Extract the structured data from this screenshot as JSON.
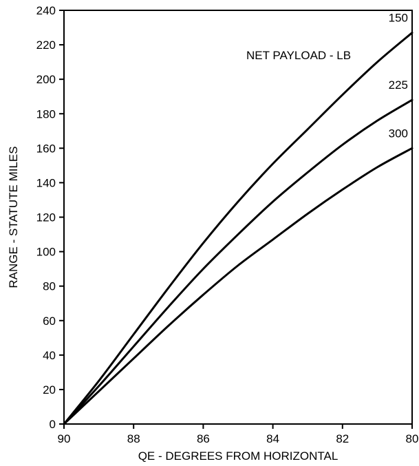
{
  "chart_data": {
    "type": "line",
    "title": "",
    "xlabel": "QE - DEGREES FROM HORIZONTAL",
    "ylabel": "RANGE - STATUTE MILES",
    "xlim": [
      90,
      80
    ],
    "ylim": [
      0,
      240
    ],
    "x_ticks": [
      90,
      88,
      86,
      84,
      82,
      80
    ],
    "y_ticks": [
      0,
      20,
      40,
      60,
      80,
      100,
      120,
      140,
      160,
      180,
      200,
      220,
      240
    ],
    "x_reversed": true,
    "grid": false,
    "legend_title": "NET PAYLOAD - LB",
    "series": [
      {
        "name": "150",
        "x": [
          90,
          89,
          88,
          87,
          86,
          85,
          84,
          83,
          82,
          81,
          80
        ],
        "y": [
          0,
          25,
          52,
          79,
          105,
          129,
          151,
          171,
          191,
          210,
          227
        ]
      },
      {
        "name": "225",
        "x": [
          90,
          89,
          88,
          87,
          86,
          85,
          84,
          83,
          82,
          81,
          80
        ],
        "y": [
          0,
          22,
          45,
          68,
          90,
          110,
          129,
          146,
          162,
          176,
          188
        ]
      },
      {
        "name": "300",
        "x": [
          90,
          89,
          88,
          87,
          86,
          85,
          84,
          83,
          82,
          81,
          80
        ],
        "y": [
          0,
          19,
          38,
          57,
          75,
          92,
          107,
          122,
          136,
          149,
          160
        ]
      }
    ]
  },
  "style": {
    "line_color": "#000000",
    "background": "#ffffff"
  }
}
